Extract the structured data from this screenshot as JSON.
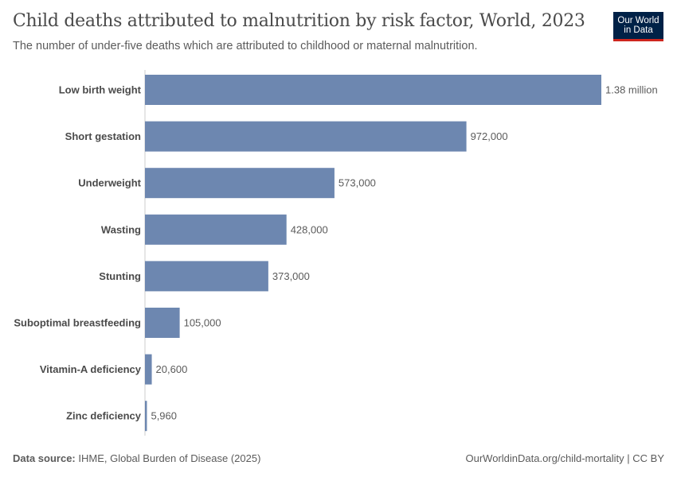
{
  "header": {
    "title": "Child deaths attributed to malnutrition by risk factor, World, 2023",
    "subtitle": "The number of under-five deaths which are attributed to childhood or maternal malnutrition.",
    "logo_text": "Our World in Data"
  },
  "footer": {
    "source_label": "Data source:",
    "source": "IHME, Global Burden of Disease (2025)",
    "url": "OurWorldinData.org/child-mortality | CC BY"
  },
  "chart_data": {
    "type": "bar",
    "orientation": "horizontal",
    "title": "Child deaths attributed to malnutrition by risk factor, World, 2023",
    "subtitle": "The number of under-five deaths which are attributed to childhood or maternal malnutrition.",
    "categories": [
      "Low birth weight",
      "Short gestation",
      "Underweight",
      "Wasting",
      "Stunting",
      "Suboptimal breastfeeding",
      "Vitamin-A deficiency",
      "Zinc deficiency"
    ],
    "values": [
      1380000,
      972000,
      573000,
      428000,
      373000,
      105000,
      20600,
      5960
    ],
    "data_labels": [
      "1.38 million",
      "972,000",
      "573,000",
      "428,000",
      "373,000",
      "105,000",
      "20,600",
      "5,960"
    ],
    "bar_color": "#6d87b0",
    "xlim": [
      0,
      1380000
    ],
    "grid": false
  }
}
